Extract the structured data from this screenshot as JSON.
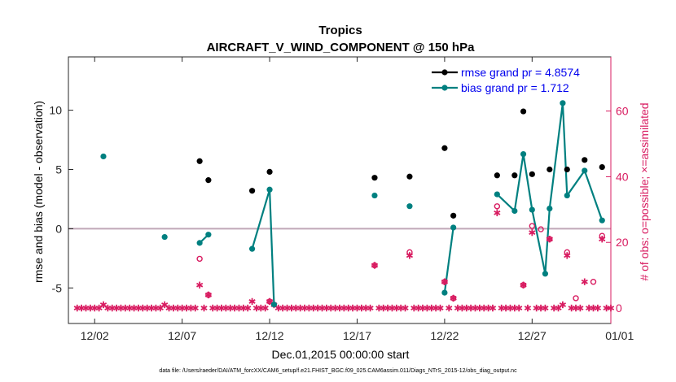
{
  "chart_data": {
    "type": "scatter",
    "title": "Tropics",
    "subtitle": "AIRCRAFT_V_WIND_COMPONENT @ 150 hPa",
    "xlabel": "Dec.01,2015 00:00:00 start",
    "ylabel": "rmse and bias (model - observation)",
    "y2label": "# of obs: o=possible; ×=assimilated",
    "xlim": [
      0.5,
      31.5
    ],
    "ylim": [
      -8,
      14.5
    ],
    "y2lim": [
      -4.7,
      76.5
    ],
    "x_ticks": [
      {
        "value": 2,
        "label": "12/02"
      },
      {
        "value": 7,
        "label": "12/07"
      },
      {
        "value": 12,
        "label": "12/12"
      },
      {
        "value": 17,
        "label": "12/17"
      },
      {
        "value": 22,
        "label": "12/22"
      },
      {
        "value": 27,
        "label": "12/27"
      },
      {
        "value": 32,
        "label": "01/01"
      }
    ],
    "y_ticks": [
      {
        "value": -5,
        "label": "-5"
      },
      {
        "value": 0,
        "label": "0"
      },
      {
        "value": 5,
        "label": "5"
      },
      {
        "value": 10,
        "label": "10"
      }
    ],
    "y2_ticks": [
      {
        "value": 0,
        "label": "0"
      },
      {
        "value": 20,
        "label": "20"
      },
      {
        "value": 40,
        "label": "40"
      },
      {
        "value": 60,
        "label": "60"
      }
    ],
    "zero_line": 0,
    "colors": {
      "rmse": "#000000",
      "bias": "#008080",
      "obs": "#d81b60",
      "legend_text": "#0000ee",
      "zero_line": "#c0a8b8"
    },
    "legend": [
      {
        "label": "rmse grand pr = 4.8574",
        "series": "rmse"
      },
      {
        "label": "bias grand pr = 1.712",
        "series": "bias"
      }
    ],
    "series": [
      {
        "name": "rmse",
        "x": [
          8.0,
          8.5,
          11.0,
          12.0,
          18.0,
          20.0,
          22.0,
          22.5,
          25.0,
          26.0,
          26.5,
          27.0,
          28.0,
          29.0,
          30.0,
          31.0
        ],
        "values": [
          5.7,
          4.1,
          3.2,
          4.8,
          4.3,
          4.4,
          6.8,
          1.1,
          4.5,
          4.5,
          9.9,
          4.6,
          5.0,
          5.0,
          5.8,
          5.2
        ]
      },
      {
        "name": "bias",
        "x": [
          2.5,
          6.0,
          8.0,
          8.5,
          11.0,
          12.0,
          12.25,
          18.0,
          20.0,
          22.0,
          22.5,
          25.0,
          26.0,
          26.5,
          27.0,
          27.75,
          28.0,
          28.75,
          29.0,
          30.0,
          31.0
        ],
        "values": [
          6.1,
          -0.7,
          -1.2,
          -0.5,
          -1.7,
          3.3,
          -6.4,
          2.8,
          1.9,
          -5.4,
          0.1,
          2.9,
          1.5,
          6.3,
          1.6,
          -3.8,
          1.7,
          10.6,
          2.8,
          4.9,
          0.7
        ]
      },
      {
        "name": "obs_possible",
        "x": [
          8.0,
          8.5,
          12.0,
          18.0,
          20.0,
          22.0,
          22.5,
          25.0,
          26.5,
          27.0,
          27.5,
          28.0,
          29.0,
          29.5,
          30.5,
          31.0
        ],
        "values": [
          15,
          4,
          2,
          13,
          17,
          8,
          3,
          31,
          7,
          25,
          24,
          21,
          17,
          3,
          8,
          22
        ]
      },
      {
        "name": "obs_assimilated",
        "x": [
          1.0,
          1.25,
          1.5,
          1.75,
          2.0,
          2.25,
          2.5,
          2.75,
          3.0,
          3.25,
          3.5,
          3.75,
          4.0,
          4.25,
          4.5,
          4.75,
          5.0,
          5.25,
          5.5,
          5.75,
          6.0,
          6.25,
          6.5,
          6.75,
          7.0,
          7.25,
          7.5,
          7.75,
          8.0,
          8.25,
          8.5,
          8.75,
          9.0,
          9.25,
          9.5,
          9.75,
          10.0,
          10.25,
          10.5,
          10.75,
          11.0,
          11.25,
          11.5,
          11.75,
          12.0,
          12.25,
          12.5,
          12.75,
          13.0,
          13.25,
          13.5,
          13.75,
          14.0,
          14.25,
          14.5,
          14.75,
          15.0,
          15.25,
          15.5,
          15.75,
          16.0,
          16.25,
          16.5,
          16.75,
          17.0,
          17.25,
          17.5,
          17.75,
          18.0,
          18.25,
          18.5,
          18.75,
          19.0,
          19.25,
          19.5,
          19.75,
          20.0,
          20.25,
          20.5,
          20.75,
          21.0,
          21.25,
          21.5,
          21.75,
          22.0,
          22.25,
          22.5,
          22.75,
          23.0,
          23.25,
          23.5,
          23.75,
          24.0,
          24.25,
          24.5,
          24.75,
          25.0,
          25.25,
          25.5,
          25.75,
          26.0,
          26.25,
          26.5,
          26.75,
          27.0,
          27.25,
          27.5,
          27.75,
          28.0,
          28.25,
          28.5,
          28.75,
          29.0,
          29.25,
          29.5,
          29.75,
          30.0,
          30.25,
          30.5,
          30.75,
          31.0,
          31.25,
          31.5
        ],
        "values": [
          0,
          0,
          0,
          0,
          0,
          0,
          1,
          0,
          0,
          0,
          0,
          0,
          0,
          0,
          0,
          0,
          0,
          0,
          0,
          0,
          1,
          0,
          0,
          0,
          0,
          0,
          0,
          0,
          7,
          0,
          4,
          0,
          0,
          0,
          0,
          0,
          0,
          0,
          0,
          0,
          2,
          0,
          0,
          0,
          2,
          1,
          0,
          0,
          0,
          0,
          0,
          0,
          0,
          0,
          0,
          0,
          0,
          0,
          0,
          0,
          0,
          0,
          0,
          0,
          0,
          0,
          0,
          0,
          13,
          0,
          0,
          0,
          0,
          0,
          0,
          0,
          16,
          0,
          0,
          0,
          0,
          0,
          0,
          0,
          8,
          0,
          3,
          0,
          0,
          0,
          0,
          0,
          0,
          0,
          0,
          0,
          29,
          0,
          0,
          0,
          0,
          0,
          7,
          0,
          23,
          0,
          0,
          0,
          21,
          0,
          0,
          1,
          16,
          0,
          0,
          0,
          8,
          0,
          0,
          0,
          21,
          0,
          0
        ]
      }
    ]
  },
  "footer": {
    "data_file": "data file: /Users/raeder/DAI/ATM_forcXX/CAM6_setup/f.e21.FHIST_BGC.f09_025.CAM6assim.011/Diags_NTrS_2015-12/obs_diag_output.nc"
  }
}
